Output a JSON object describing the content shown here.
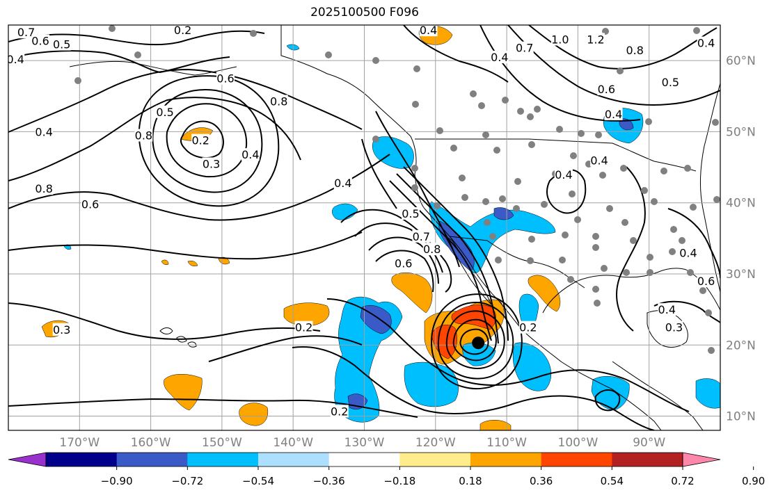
{
  "title": "2025100500 F096",
  "map": {
    "lon_range": [
      -180,
      -80
    ],
    "lat_range": [
      8,
      65
    ],
    "lon_ticks": [
      {
        "value": -170,
        "label": "170°W"
      },
      {
        "value": -160,
        "label": "160°W"
      },
      {
        "value": -150,
        "label": "150°W"
      },
      {
        "value": -140,
        "label": "140°W"
      },
      {
        "value": -130,
        "label": "130°W"
      },
      {
        "value": -120,
        "label": "120°W"
      },
      {
        "value": -110,
        "label": "110°W"
      },
      {
        "value": -100,
        "label": "100°W"
      },
      {
        "value": -90,
        "label": "90°W"
      }
    ],
    "lat_ticks": [
      {
        "value": 60,
        "label": "60°N"
      },
      {
        "value": 50,
        "label": "50°N"
      },
      {
        "value": 40,
        "label": "40°N"
      },
      {
        "value": 30,
        "label": "30°N"
      },
      {
        "value": 20,
        "label": "20°N"
      },
      {
        "value": 10,
        "label": "10°N"
      }
    ],
    "grid": true,
    "cyclone_center": {
      "lon": -114,
      "lat": 20.3
    }
  },
  "contour_labels": [
    {
      "text": "0.7",
      "lon": -177.5,
      "lat": 64.0
    },
    {
      "text": "0.6",
      "lon": -175.5,
      "lat": 62.8
    },
    {
      "text": "0.5",
      "lon": -172.5,
      "lat": 62.3
    },
    {
      "text": "0.4",
      "lon": -179.0,
      "lat": 60.2
    },
    {
      "text": "0.2",
      "lon": -155.5,
      "lat": 64.3
    },
    {
      "text": "0.4",
      "lon": -121.0,
      "lat": 64.3
    },
    {
      "text": "0.6",
      "lon": -149.5,
      "lat": 57.5
    },
    {
      "text": "0.5",
      "lon": -158.0,
      "lat": 52.8
    },
    {
      "text": "0.4",
      "lon": -175.0,
      "lat": 50.0
    },
    {
      "text": "0.8",
      "lon": -142.0,
      "lat": 54.3
    },
    {
      "text": "0.2",
      "lon": -153.0,
      "lat": 48.8
    },
    {
      "text": "0.8",
      "lon": -161.0,
      "lat": 49.5
    },
    {
      "text": "0.3",
      "lon": -151.5,
      "lat": 45.5
    },
    {
      "text": "0.4",
      "lon": -146.0,
      "lat": 46.8
    },
    {
      "text": "0.8",
      "lon": -175.0,
      "lat": 42.0
    },
    {
      "text": "0.6",
      "lon": -168.5,
      "lat": 39.8
    },
    {
      "text": "0.4",
      "lon": -133.0,
      "lat": 42.8
    },
    {
      "text": "0.5",
      "lon": -123.5,
      "lat": 38.5
    },
    {
      "text": "0.7",
      "lon": -122.0,
      "lat": 35.3
    },
    {
      "text": "0.8",
      "lon": -120.5,
      "lat": 33.5
    },
    {
      "text": "0.6",
      "lon": -124.5,
      "lat": 31.5
    },
    {
      "text": "0.3",
      "lon": -172.5,
      "lat": 22.2
    },
    {
      "text": "0.2",
      "lon": -138.5,
      "lat": 22.5
    },
    {
      "text": "0.2",
      "lon": -133.5,
      "lat": 10.7
    },
    {
      "text": "0.2",
      "lon": -107.0,
      "lat": 22.5
    },
    {
      "text": "0.4",
      "lon": -95.0,
      "lat": 52.5
    },
    {
      "text": "0.4",
      "lon": -111.0,
      "lat": 60.5
    },
    {
      "text": "0.7",
      "lon": -107.5,
      "lat": 61.8
    },
    {
      "text": "1.0",
      "lon": -102.5,
      "lat": 63.0
    },
    {
      "text": "1.2",
      "lon": -97.5,
      "lat": 63.0
    },
    {
      "text": "0.8",
      "lon": -92.0,
      "lat": 61.5
    },
    {
      "text": "0.6",
      "lon": -96.0,
      "lat": 56.0
    },
    {
      "text": "0.5",
      "lon": -87.0,
      "lat": 57.0
    },
    {
      "text": "0.4",
      "lon": -102.0,
      "lat": 44.0
    },
    {
      "text": "0.4",
      "lon": -97.0,
      "lat": 46.0
    },
    {
      "text": "0.4",
      "lon": -84.5,
      "lat": 33.0
    },
    {
      "text": "0.4",
      "lon": -87.5,
      "lat": 25.0
    },
    {
      "text": "0.3",
      "lon": -86.5,
      "lat": 22.5
    },
    {
      "text": "0.4",
      "lon": -82.0,
      "lat": 62.5
    },
    {
      "text": "0.6",
      "lon": -82.0,
      "lat": 29.0
    }
  ],
  "colorbar": {
    "colors": [
      "#9932CC",
      "#00008B",
      "#3A5BC7",
      "#00BFFF",
      "#ADDFFF",
      "#FFFFFF",
      "#FFEC8B",
      "#FFA500",
      "#FF4500",
      "#B22222",
      "#FF88AA"
    ],
    "tick_labels": [
      "−0.90",
      "−0.72",
      "−0.54",
      "−0.36",
      "−0.18",
      "0.18",
      "0.36",
      "0.54",
      "0.72",
      "0.90"
    ]
  },
  "colors": {
    "grid": "#a0a0a0",
    "tick_label": "#808080",
    "station_dot": "#808080"
  }
}
